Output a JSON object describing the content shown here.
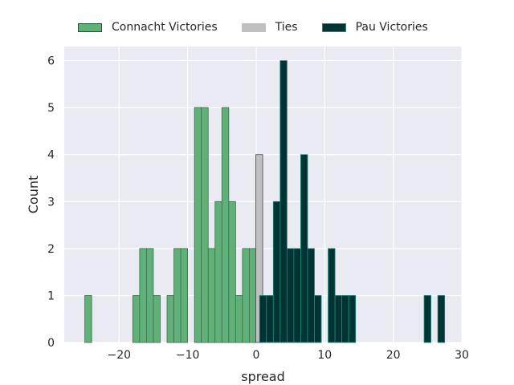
{
  "chart_data": {
    "type": "bar",
    "subtype": "histogram",
    "xlabel": "spread",
    "ylabel": "Count",
    "xlim": [
      -28,
      30
    ],
    "ylim": [
      0,
      6.3
    ],
    "bin_width": 1,
    "grid": true,
    "legend_placement": "top",
    "xticks": [
      -20,
      -10,
      0,
      10,
      20,
      30
    ],
    "yticks": [
      0,
      1,
      2,
      3,
      4,
      5,
      6
    ],
    "series": [
      {
        "name": "Connacht Victories",
        "color": "#60b178",
        "bins": [
          {
            "x": -25,
            "count": 1
          },
          {
            "x": -18,
            "count": 1
          },
          {
            "x": -17,
            "count": 2
          },
          {
            "x": -16,
            "count": 2
          },
          {
            "x": -15,
            "count": 1
          },
          {
            "x": -13,
            "count": 1
          },
          {
            "x": -12,
            "count": 2
          },
          {
            "x": -11,
            "count": 2
          },
          {
            "x": -9,
            "count": 5
          },
          {
            "x": -8,
            "count": 5
          },
          {
            "x": -7,
            "count": 2
          },
          {
            "x": -6,
            "count": 3
          },
          {
            "x": -5,
            "count": 5
          },
          {
            "x": -4,
            "count": 3
          },
          {
            "x": -3,
            "count": 1
          },
          {
            "x": -2,
            "count": 2
          },
          {
            "x": -1,
            "count": 2
          }
        ]
      },
      {
        "name": "Ties",
        "color": "#c0c0c0",
        "bins": [
          {
            "x": -0.05,
            "count": 4
          }
        ]
      },
      {
        "name": "Pau Victories",
        "color": "#003333",
        "bins": [
          {
            "x": 0.5,
            "count": 1
          },
          {
            "x": 1.5,
            "count": 1
          },
          {
            "x": 2.5,
            "count": 3
          },
          {
            "x": 3.5,
            "count": 6
          },
          {
            "x": 4.5,
            "count": 2
          },
          {
            "x": 5.5,
            "count": 2
          },
          {
            "x": 6.5,
            "count": 4
          },
          {
            "x": 7.5,
            "count": 2
          },
          {
            "x": 8.5,
            "count": 1
          },
          {
            "x": 10.5,
            "count": 2
          },
          {
            "x": 11.5,
            "count": 1
          },
          {
            "x": 12.5,
            "count": 1
          },
          {
            "x": 13.5,
            "count": 1
          },
          {
            "x": 24.5,
            "count": 1
          },
          {
            "x": 26.5,
            "count": 1
          }
        ]
      }
    ]
  }
}
